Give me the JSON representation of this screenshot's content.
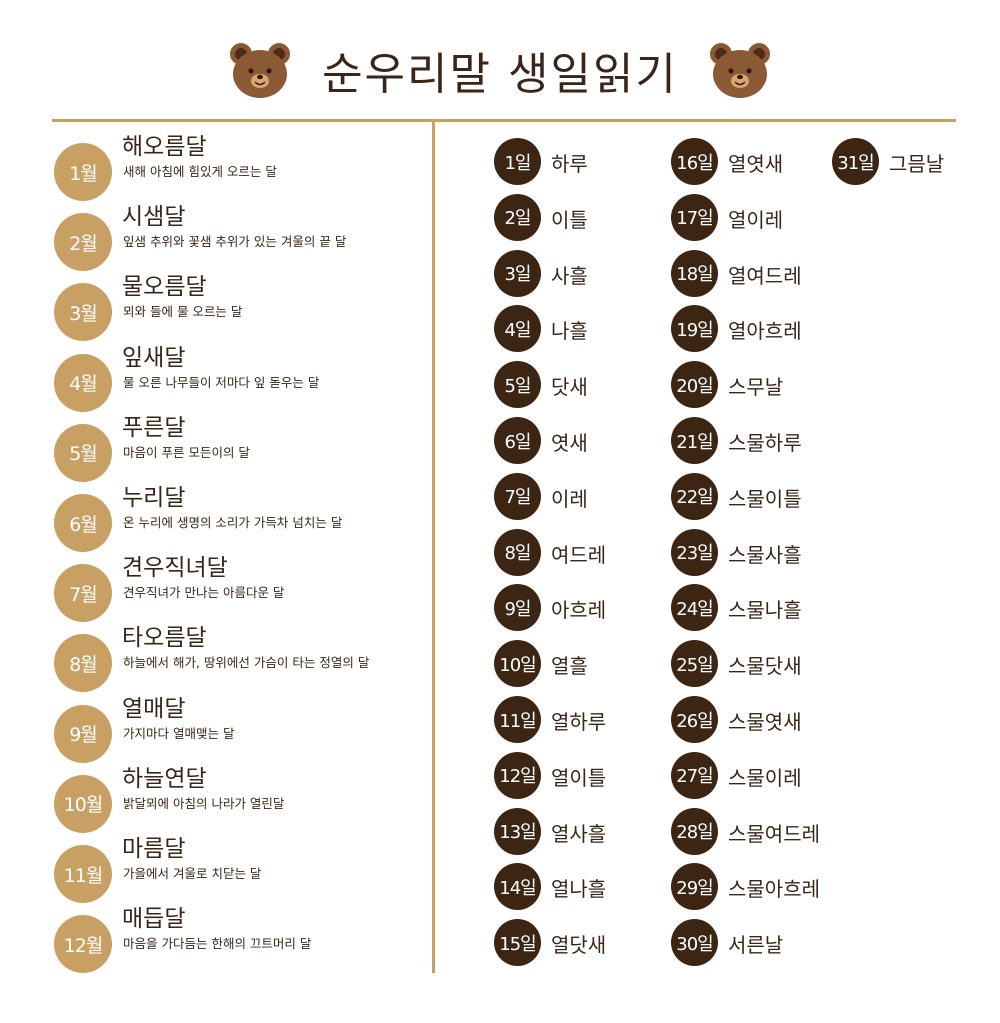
{
  "header": {
    "title": "순우리말 생일읽기",
    "left_icon": "bear-face-icon",
    "right_icon": "bear-face-icon"
  },
  "colors": {
    "gold": "#c9a063",
    "dark_brown": "#3d2514",
    "text": "#3a2618",
    "bear": "#8b5a35"
  },
  "months": [
    {
      "label": "1월",
      "name": "해오름달",
      "desc": "새해 아침에 힘있게 오르는 달"
    },
    {
      "label": "2월",
      "name": "시샘달",
      "desc": "잎샘 추위와 꽃샘 추위가 있는 겨울의 끝 달"
    },
    {
      "label": "3월",
      "name": "물오름달",
      "desc": "뫼와 들에 물 오르는 달"
    },
    {
      "label": "4월",
      "name": "잎새달",
      "desc": "물 오른 나무들이 저마다 잎 돋우는 달"
    },
    {
      "label": "5월",
      "name": "푸른달",
      "desc": "마음이 푸른 모든이의 달"
    },
    {
      "label": "6월",
      "name": "누리달",
      "desc": "온 누리에 생명의 소리가 가득차 넘치는 달"
    },
    {
      "label": "7월",
      "name": "견우직녀달",
      "desc": "견우직녀가 만나는 아름다운 달"
    },
    {
      "label": "8월",
      "name": "타오름달",
      "desc": "하늘에서 해가, 땅위에선 가슴이 타는 정열의 달"
    },
    {
      "label": "9월",
      "name": "열매달",
      "desc": "가지마다 열매맺는 달"
    },
    {
      "label": "10월",
      "name": "하늘연달",
      "desc": "밝달뫼에 아침의 나라가 열린달"
    },
    {
      "label": "11월",
      "name": "마름달",
      "desc": "가을에서 겨울로 치닫는 달"
    },
    {
      "label": "12월",
      "name": "매듭달",
      "desc": "마음을 가다듬는 한해의 끄트머리 달"
    }
  ],
  "days": [
    {
      "label": "1일",
      "name": "하루"
    },
    {
      "label": "2일",
      "name": "이틀"
    },
    {
      "label": "3일",
      "name": "사흘"
    },
    {
      "label": "4일",
      "name": "나흘"
    },
    {
      "label": "5일",
      "name": "닷새"
    },
    {
      "label": "6일",
      "name": "엿새"
    },
    {
      "label": "7일",
      "name": "이레"
    },
    {
      "label": "8일",
      "name": "여드레"
    },
    {
      "label": "9일",
      "name": "아흐레"
    },
    {
      "label": "10일",
      "name": "열흘"
    },
    {
      "label": "11일",
      "name": "열하루"
    },
    {
      "label": "12일",
      "name": "열이틀"
    },
    {
      "label": "13일",
      "name": "열사흘"
    },
    {
      "label": "14일",
      "name": "열나흘"
    },
    {
      "label": "15일",
      "name": "열닷새"
    },
    {
      "label": "16일",
      "name": "열엿새"
    },
    {
      "label": "17일",
      "name": "열이레"
    },
    {
      "label": "18일",
      "name": "열여드레"
    },
    {
      "label": "19일",
      "name": "열아흐레"
    },
    {
      "label": "20일",
      "name": "스무날"
    },
    {
      "label": "21일",
      "name": "스물하루"
    },
    {
      "label": "22일",
      "name": "스물이틀"
    },
    {
      "label": "23일",
      "name": "스물사흘"
    },
    {
      "label": "24일",
      "name": "스물나흘"
    },
    {
      "label": "25일",
      "name": "스물닷새"
    },
    {
      "label": "26일",
      "name": "스물엿새"
    },
    {
      "label": "27일",
      "name": "스물이레"
    },
    {
      "label": "28일",
      "name": "스물여드레"
    },
    {
      "label": "29일",
      "name": "스물아흐레"
    },
    {
      "label": "30일",
      "name": "서른날"
    },
    {
      "label": "31일",
      "name": "그믐날"
    }
  ]
}
